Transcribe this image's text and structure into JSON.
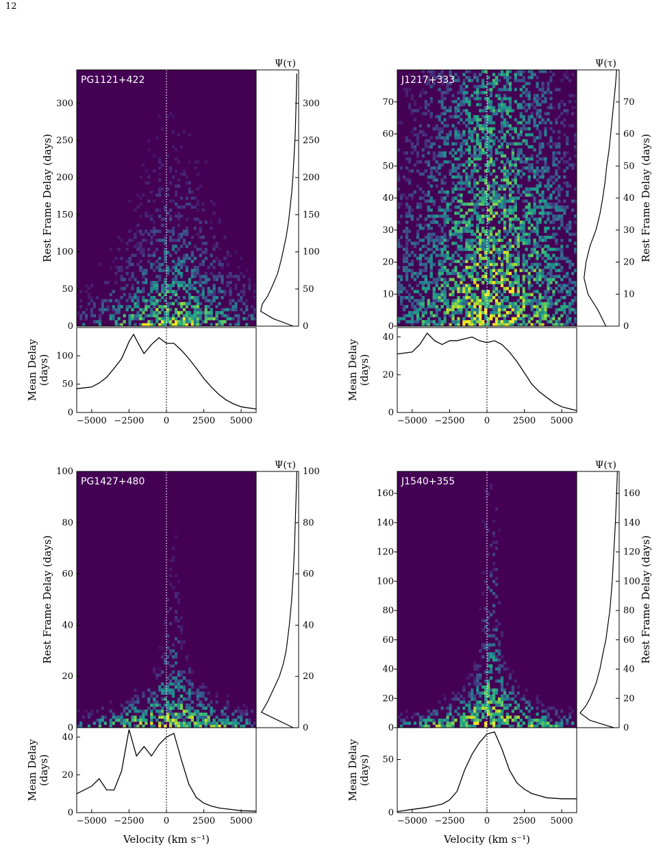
{
  "page": {
    "number": "12"
  },
  "chart_data": [
    {
      "type": "heatmap",
      "object": "PG1121+422",
      "heatmap": {
        "xlim": [
          -6000,
          6000
        ],
        "ylim": [
          0,
          345
        ],
        "yticks": [
          0,
          50,
          100,
          150,
          200,
          250,
          300
        ],
        "ylabel": "Rest Frame Delay (days)",
        "ylabel_side": "left",
        "colormap": "viridis",
        "zero_line_x": 0
      },
      "transfer": {
        "label": "Ψ(τ)",
        "yticks": [
          0,
          50,
          100,
          150,
          200,
          250,
          300
        ],
        "tau": [
          0,
          10,
          20,
          30,
          40,
          50,
          60,
          70,
          80,
          90,
          100,
          120,
          140,
          160,
          180,
          200,
          230,
          260,
          300,
          340
        ],
        "psi": [
          0.9,
          0.4,
          0.08,
          0.12,
          0.25,
          0.34,
          0.42,
          0.5,
          0.55,
          0.6,
          0.64,
          0.72,
          0.78,
          0.82,
          0.86,
          0.89,
          0.92,
          0.95,
          0.97,
          0.99
        ]
      },
      "mean_delay": {
        "ylabel": "Mean Delay (days)",
        "ylim": [
          0,
          150
        ],
        "yticks": [
          0,
          50,
          100
        ],
        "xticks": [
          -5000,
          -2500,
          0,
          2500,
          5000
        ],
        "x": [
          -6000,
          -5000,
          -4500,
          -4000,
          -3500,
          -3000,
          -2500,
          -2200,
          -1800,
          -1500,
          -1000,
          -500,
          0,
          500,
          1000,
          1500,
          2000,
          2500,
          3000,
          3500,
          4000,
          4500,
          5000,
          6000
        ],
        "y": [
          42,
          45,
          52,
          62,
          78,
          95,
          125,
          138,
          118,
          104,
          120,
          132,
          122,
          122,
          110,
          95,
          78,
          60,
          45,
          32,
          22,
          15,
          10,
          6
        ]
      }
    },
    {
      "type": "heatmap",
      "object": "J1217+333",
      "heatmap": {
        "xlim": [
          -6000,
          6000
        ],
        "ylim": [
          0,
          80
        ],
        "yticks": [
          0,
          10,
          20,
          30,
          40,
          50,
          60,
          70
        ],
        "ylabel": "Rest Frame Delay (days)",
        "ylabel_side": "right",
        "colormap": "viridis",
        "zero_line_x": 0
      },
      "transfer": {
        "label": "Ψ(τ)",
        "yticks": [
          0,
          10,
          20,
          30,
          40,
          50,
          60,
          70
        ],
        "tau": [
          0,
          5,
          10,
          15,
          20,
          25,
          30,
          35,
          40,
          45,
          50,
          55,
          60,
          65,
          70,
          75,
          80
        ],
        "psi": [
          0.7,
          0.5,
          0.25,
          0.15,
          0.2,
          0.3,
          0.45,
          0.55,
          0.62,
          0.68,
          0.72,
          0.78,
          0.82,
          0.86,
          0.9,
          0.94,
          0.97
        ]
      },
      "mean_delay": {
        "ylabel": "Mean Delay (days)",
        "ylim": [
          0,
          45
        ],
        "yticks": [
          0,
          20,
          40
        ],
        "xticks": [
          -5000,
          -2500,
          0,
          2500,
          5000
        ],
        "x": [
          -6000,
          -5000,
          -4500,
          -4000,
          -3500,
          -3000,
          -2500,
          -2000,
          -1500,
          -1000,
          -500,
          0,
          500,
          1000,
          1500,
          2000,
          2500,
          3000,
          3500,
          4000,
          4500,
          5000,
          5500,
          6000
        ],
        "y": [
          31,
          32,
          36,
          42,
          38,
          36,
          38,
          38,
          39,
          40,
          38,
          37,
          38,
          36,
          32,
          27,
          21,
          15,
          11,
          8,
          5,
          3,
          2,
          1
        ]
      }
    },
    {
      "type": "heatmap",
      "object": "PG1427+480",
      "heatmap": {
        "xlim": [
          -6000,
          6000
        ],
        "ylim": [
          0,
          100
        ],
        "yticks": [
          0,
          20,
          40,
          60,
          80,
          100
        ],
        "ylabel": "Rest Frame Delay (days)",
        "ylabel_side": "left",
        "colormap": "viridis",
        "zero_line_x": 0
      },
      "transfer": {
        "label": "Ψ(τ)",
        "yticks": [
          0,
          20,
          40,
          60,
          80,
          100
        ],
        "tau": [
          0,
          3,
          6,
          10,
          15,
          20,
          25,
          30,
          40,
          50,
          60,
          70,
          80,
          90,
          100
        ],
        "psi": [
          0.9,
          0.5,
          0.1,
          0.25,
          0.4,
          0.55,
          0.65,
          0.72,
          0.8,
          0.86,
          0.9,
          0.93,
          0.95,
          0.97,
          0.99
        ]
      },
      "mean_delay": {
        "ylabel": "Mean Delay (days)",
        "ylim": [
          0,
          45
        ],
        "yticks": [
          0,
          20,
          40
        ],
        "xticks": [
          -5000,
          -2500,
          0,
          2500,
          5000
        ],
        "x": [
          -6000,
          -5000,
          -4500,
          -4000,
          -3500,
          -3000,
          -2500,
          -2000,
          -1500,
          -1000,
          -500,
          0,
          500,
          1000,
          1500,
          2000,
          2500,
          3000,
          3500,
          4000,
          4500,
          5000,
          6000
        ],
        "y": [
          10,
          14,
          18,
          12,
          12,
          22,
          44,
          30,
          35,
          30,
          36,
          40,
          42,
          28,
          15,
          8,
          5,
          3.5,
          2.5,
          2,
          1.5,
          1,
          0.8
        ]
      }
    },
    {
      "type": "heatmap",
      "object": "J1540+355",
      "heatmap": {
        "xlim": [
          -6000,
          6000
        ],
        "ylim": [
          0,
          175
        ],
        "yticks": [
          0,
          20,
          40,
          60,
          80,
          100,
          120,
          140,
          160
        ],
        "ylabel": "Rest Frame Delay (days)",
        "ylabel_side": "right",
        "colormap": "viridis",
        "zero_line_x": 0
      },
      "transfer": {
        "label": "Ψ(τ)",
        "yticks": [
          0,
          20,
          40,
          60,
          80,
          100,
          120,
          140,
          160
        ],
        "tau": [
          0,
          5,
          10,
          15,
          20,
          30,
          40,
          50,
          60,
          80,
          100,
          120,
          140,
          160,
          175
        ],
        "psi": [
          0.9,
          0.3,
          0.05,
          0.2,
          0.3,
          0.45,
          0.55,
          0.62,
          0.7,
          0.8,
          0.86,
          0.9,
          0.94,
          0.97,
          0.99
        ]
      },
      "mean_delay": {
        "ylabel": "Mean Delay (days)",
        "ylim": [
          0,
          80
        ],
        "yticks": [
          0,
          50
        ],
        "xticks": [
          -5000,
          -2500,
          0,
          2500,
          5000
        ],
        "x": [
          -6000,
          -5000,
          -4000,
          -3000,
          -2500,
          -2000,
          -1500,
          -1000,
          -500,
          0,
          500,
          1000,
          1500,
          2000,
          2500,
          3000,
          3500,
          4000,
          5000,
          6000
        ],
        "y": [
          1,
          3,
          5,
          8,
          12,
          20,
          40,
          55,
          66,
          74,
          76,
          60,
          40,
          28,
          22,
          18,
          16,
          14,
          13,
          13
        ]
      }
    }
  ],
  "xlabel": "Velocity (km s⁻¹)"
}
